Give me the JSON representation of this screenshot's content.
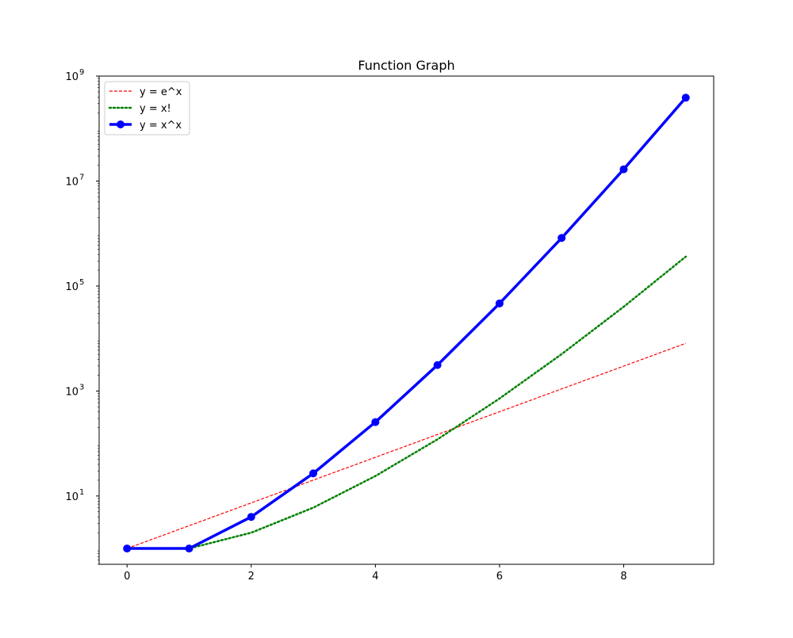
{
  "chart_data": {
    "type": "line",
    "title": "Function Graph",
    "xlabel": "",
    "ylabel": "",
    "x_scale": "linear",
    "y_scale": "log",
    "xlim": [
      -0.45,
      9.45
    ],
    "ylim": [
      0.5,
      1000000000
    ],
    "x_ticks": [
      0,
      2,
      4,
      6,
      8
    ],
    "x_tick_labels": [
      "0",
      "2",
      "4",
      "6",
      "8"
    ],
    "y_ticks": [
      10,
      1000,
      100000,
      10000000,
      1000000000
    ],
    "y_tick_labels": [
      {
        "base": "10",
        "exp": "1"
      },
      {
        "base": "10",
        "exp": "3"
      },
      {
        "base": "10",
        "exp": "5"
      },
      {
        "base": "10",
        "exp": "7"
      },
      {
        "base": "10",
        "exp": "9"
      }
    ],
    "grid": false,
    "legend_position": "upper-left",
    "series": [
      {
        "name": "y = e^x",
        "color": "#ff0000",
        "style": "dashed",
        "marker": "none",
        "x": [
          0,
          1,
          2,
          3,
          4,
          5,
          6,
          7,
          8,
          9
        ],
        "y": [
          1,
          2.718,
          7.389,
          20.09,
          54.6,
          148.4,
          403.4,
          1096.6,
          2981,
          8103
        ]
      },
      {
        "name": "y = x!",
        "color": "#008000",
        "style": "dotted",
        "marker": "none",
        "x": [
          0,
          1,
          2,
          3,
          4,
          5,
          6,
          7,
          8,
          9
        ],
        "y": [
          1,
          1,
          2,
          6,
          24,
          120,
          720,
          5040,
          40320,
          362880
        ]
      },
      {
        "name": "y = x^x",
        "color": "#0000ff",
        "style": "solid",
        "marker": "circle",
        "x": [
          0,
          1,
          2,
          3,
          4,
          5,
          6,
          7,
          8,
          9
        ],
        "y": [
          1,
          1,
          4,
          27,
          256,
          3125,
          46656,
          823543,
          16777216,
          387420489
        ]
      }
    ]
  }
}
